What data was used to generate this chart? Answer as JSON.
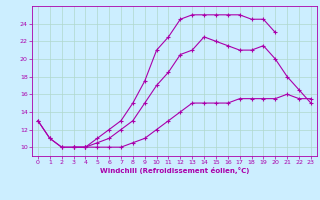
{
  "title": "",
  "xlabel": "Windchill (Refroidissement éolien,°C)",
  "background_color": "#cceeff",
  "grid_color": "#b0d8cc",
  "line_color": "#aa00aa",
  "xlim": [
    -0.5,
    23.5
  ],
  "ylim": [
    9.0,
    26.0
  ],
  "xticks": [
    0,
    1,
    2,
    3,
    4,
    5,
    6,
    7,
    8,
    9,
    10,
    11,
    12,
    13,
    14,
    15,
    16,
    17,
    18,
    19,
    20,
    21,
    22,
    23
  ],
  "yticks": [
    10,
    12,
    14,
    16,
    18,
    20,
    22,
    24
  ],
  "line1_x": [
    0,
    1,
    2,
    3,
    4,
    5,
    6,
    7,
    8,
    9,
    10,
    11,
    12,
    13,
    14,
    15,
    16,
    17,
    18,
    19,
    20,
    21,
    22,
    23
  ],
  "line1_y": [
    13,
    11,
    10,
    10,
    10,
    10.5,
    11,
    12,
    13,
    15,
    17,
    18.5,
    20.5,
    21,
    22.5,
    22,
    21.5,
    21,
    21,
    21.5,
    20,
    18,
    16.5,
    15
  ],
  "line2_x": [
    0,
    1,
    2,
    3,
    4,
    5,
    6,
    7,
    8,
    9,
    10,
    11,
    12,
    13,
    14,
    15,
    16,
    17,
    18,
    19,
    20
  ],
  "line2_y": [
    13,
    11,
    10,
    10,
    10,
    11,
    12,
    13,
    15,
    17.5,
    21,
    22.5,
    24.5,
    25,
    25,
    25,
    25,
    25,
    24.5,
    24.5,
    23
  ],
  "line3_x": [
    3,
    4,
    5,
    6,
    7,
    8,
    9,
    10,
    11,
    12,
    13,
    14,
    15,
    16,
    17,
    18,
    19,
    20,
    21,
    22,
    23
  ],
  "line3_y": [
    10,
    10,
    10,
    10,
    10,
    10.5,
    11,
    12,
    13,
    14,
    15,
    15,
    15,
    15,
    15.5,
    15.5,
    15.5,
    15.5,
    16,
    15.5,
    15.5
  ]
}
